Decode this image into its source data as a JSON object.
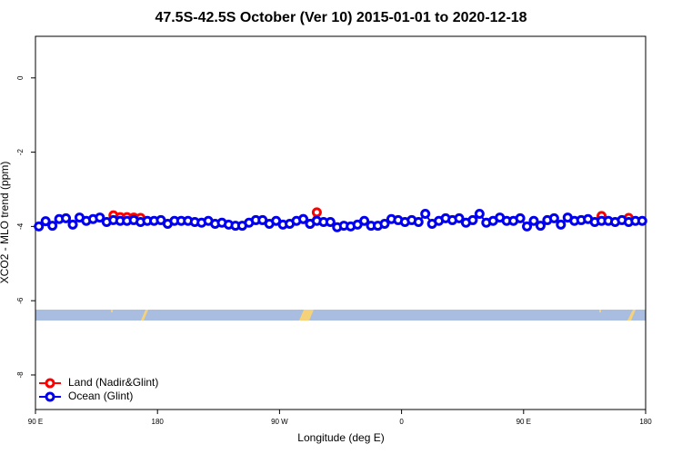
{
  "chart_data": {
    "type": "line",
    "title": "47.5S-42.5S October (Ver 10)   2015-01-01 to 2020-12-18",
    "x_label": "Longitude (deg E)",
    "y_label": "XCO2 - MLO trend (ppm)",
    "xlim": [
      90,
      540
    ],
    "ylim": [
      -8.93,
      1.12
    ],
    "xticks": [
      {
        "value": 90,
        "label": "90 E"
      },
      {
        "value": 180,
        "label": "180"
      },
      {
        "value": 270,
        "label": "90 W"
      },
      {
        "value": 360,
        "label": "0"
      },
      {
        "value": 450,
        "label": "90 E"
      },
      {
        "value": 540,
        "label": "180"
      }
    ],
    "yticks": [
      -8,
      -6,
      -4,
      -2,
      0
    ],
    "legend": "bottom-left",
    "series": [
      {
        "name": "Land (Nadir&Glint)",
        "color": "#ff0000",
        "x": [
          147.5,
          152.5,
          157.5,
          162.5,
          167.5,
          172.5,
          287.5,
          292.5,
          297.5,
          302.5,
          507.5,
          512.5,
          527.5
        ],
        "values": [
          -3.7,
          -3.75,
          -3.75,
          -3.76,
          -3.77,
          null,
          -3.8,
          -3.93,
          -3.62,
          null,
          -3.72,
          null,
          -3.77
        ]
      },
      {
        "name": "Ocean (Glint)",
        "color": "#0000ee",
        "x": [
          92.5,
          97.5,
          102.5,
          107.5,
          112.5,
          117.5,
          122.5,
          127.5,
          132.5,
          137.5,
          142.5,
          147.5,
          152.5,
          157.5,
          162.5,
          167.5,
          172.5,
          177.5,
          182.5,
          187.5,
          192.5,
          197.5,
          202.5,
          207.5,
          212.5,
          217.5,
          222.5,
          227.5,
          232.5,
          237.5,
          242.5,
          247.5,
          252.5,
          257.5,
          262.5,
          267.5,
          272.5,
          277.5,
          282.5,
          287.5,
          292.5,
          297.5,
          302.5,
          307.5,
          312.5,
          317.5,
          322.5,
          327.5,
          332.5,
          337.5,
          342.5,
          347.5,
          352.5,
          357.5,
          362.5,
          367.5,
          372.5,
          377.5,
          382.5,
          387.5,
          392.5,
          397.5,
          402.5,
          407.5,
          412.5,
          417.5,
          422.5,
          427.5,
          432.5,
          437.5,
          442.5,
          447.5,
          452.5,
          457.5,
          462.5,
          467.5,
          472.5,
          477.5,
          482.5,
          487.5,
          492.5,
          497.5,
          502.5,
          507.5,
          512.5,
          517.5,
          522.5,
          527.5,
          532.5,
          537.5
        ],
        "values": [
          -4.0,
          -3.86,
          -3.98,
          -3.8,
          -3.78,
          -3.95,
          -3.76,
          -3.85,
          -3.8,
          -3.76,
          -3.88,
          -3.83,
          -3.85,
          -3.85,
          -3.83,
          -3.88,
          -3.85,
          -3.85,
          -3.83,
          -3.93,
          -3.85,
          -3.85,
          -3.85,
          -3.88,
          -3.9,
          -3.85,
          -3.93,
          -3.9,
          -3.95,
          -3.98,
          -3.98,
          -3.9,
          -3.83,
          -3.83,
          -3.93,
          -3.85,
          -3.95,
          -3.93,
          -3.85,
          -3.8,
          -3.93,
          -3.85,
          -3.88,
          -3.88,
          -4.02,
          -3.98,
          -4.0,
          -3.95,
          -3.85,
          -3.98,
          -3.98,
          -3.93,
          -3.8,
          -3.83,
          -3.88,
          -3.83,
          -3.88,
          -3.66,
          -3.93,
          -3.85,
          -3.78,
          -3.83,
          -3.78,
          -3.9,
          -3.83,
          -3.66,
          -3.9,
          -3.85,
          -3.76,
          -3.85,
          -3.85,
          -3.78,
          -4.0,
          -3.85,
          -3.98,
          -3.83,
          -3.78,
          -3.95,
          -3.76,
          -3.85,
          -3.83,
          -3.8,
          -3.88,
          -3.85,
          -3.85,
          -3.88,
          -3.83,
          -3.88,
          -3.85,
          -3.85
        ]
      }
    ]
  }
}
